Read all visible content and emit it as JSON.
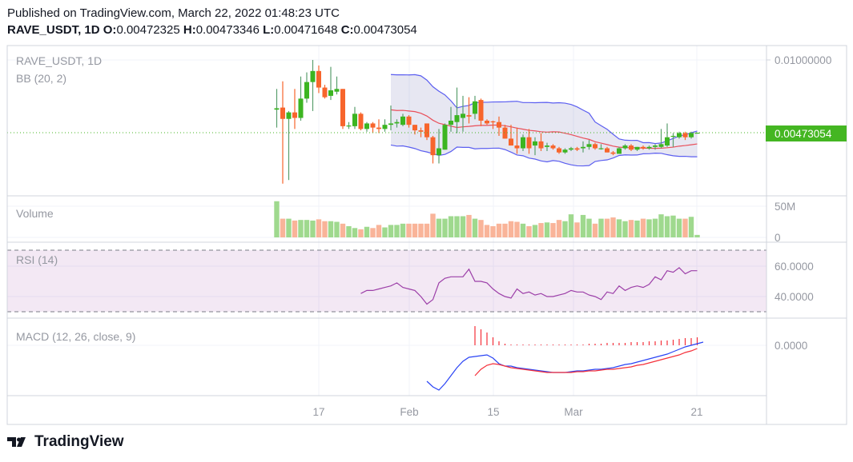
{
  "header": {
    "published": "Published on TradingView.com, March 22, 2022 01:48:23 UTC",
    "symbol_interval": "RAVE_USDT, 1D",
    "o_label": "O:",
    "o_value": "0.00472325",
    "h_label": "H:",
    "h_value": "0.00473346",
    "l_label": "L:",
    "l_value": "0.00471648",
    "c_label": "C:",
    "c_value": "0.00473054"
  },
  "legend": {
    "symbol": "RAVE_USDT, 1D",
    "bb": "BB (20, 2)",
    "volume": "Volume",
    "rsi": "RSI (14)",
    "macd": "MACD (12, 26, close, 9)"
  },
  "price_axis": {
    "labels": [
      "0.01000000"
    ],
    "last_price": "0.00473054"
  },
  "volume_axis": {
    "labels": [
      "50M",
      "0"
    ]
  },
  "rsi_axis": {
    "labels": [
      "60.0000",
      "40.0000"
    ]
  },
  "macd_axis": {
    "labels": [
      "0.0000"
    ]
  },
  "time_axis": {
    "labels": [
      "17",
      "Feb",
      "15",
      "Mar",
      "21"
    ]
  },
  "footer": {
    "brand": "TradingView"
  },
  "colors": {
    "up": "#3cb521",
    "down": "#f7652c",
    "bb_band": "#5b5ef0",
    "bb_basis": "#e94f5a",
    "rsi": "#9c3fa8",
    "macd": "#2a44f5",
    "signal": "#f5303a",
    "last_price_bg": "#44b622"
  },
  "chart_data": {
    "type": "candlestick",
    "start_date": "2022-01-10",
    "ohlc": [
      [
        0.0064,
        0.0079,
        0.0051,
        0.0065
      ],
      [
        0.00655,
        0.00845,
        0.00104,
        0.00573
      ],
      [
        0.00573,
        0.0063,
        0.0013,
        0.0062
      ],
      [
        0.0062,
        0.0079,
        0.005,
        0.0058
      ],
      [
        0.0058,
        0.0088,
        0.0056,
        0.0072
      ],
      [
        0.0072,
        0.0091,
        0.0069,
        0.0084
      ],
      [
        0.0084,
        0.01,
        0.0063,
        0.0092
      ],
      [
        0.0092,
        0.0096,
        0.0076,
        0.008
      ],
      [
        0.008,
        0.0082,
        0.0072,
        0.0073
      ],
      [
        0.0074,
        0.0095,
        0.0071,
        0.0078
      ],
      [
        0.0077,
        0.0088,
        0.0075,
        0.0079
      ],
      [
        0.0079,
        0.0079,
        0.005,
        0.0052
      ],
      [
        0.0052,
        0.0055,
        0.005,
        0.00525
      ],
      [
        0.0052,
        0.0066,
        0.005,
        0.0061
      ],
      [
        0.0061,
        0.0062,
        0.0049,
        0.005
      ],
      [
        0.005,
        0.0055,
        0.0048,
        0.0054
      ],
      [
        0.0054,
        0.0055,
        0.0047,
        0.0051
      ],
      [
        0.0051,
        0.0057,
        0.0047,
        0.005
      ],
      [
        0.005,
        0.0057,
        0.0048,
        0.0053
      ],
      [
        0.0053,
        0.0067,
        0.0049,
        0.0054
      ],
      [
        0.0054,
        0.0057,
        0.0051,
        0.0055
      ],
      [
        0.0053,
        0.0061,
        0.0052,
        0.0059
      ],
      [
        0.0059,
        0.006,
        0.0051,
        0.0053
      ],
      [
        0.0053,
        0.0053,
        0.0046,
        0.0049
      ],
      [
        0.0049,
        0.0051,
        0.0044,
        0.0048
      ],
      [
        0.0054,
        0.0054,
        0.0042,
        0.0044
      ],
      [
        0.0044,
        0.0045,
        0.0025,
        0.0031
      ],
      [
        0.0031,
        0.005,
        0.0025,
        0.0036
      ],
      [
        0.0035,
        0.0054,
        0.0035,
        0.0053
      ],
      [
        0.0053,
        0.0066,
        0.0048,
        0.0056
      ],
      [
        0.0055,
        0.008,
        0.0047,
        0.006
      ],
      [
        0.0058,
        0.0074,
        0.0048,
        0.0061
      ],
      [
        0.006,
        0.0073,
        0.0054,
        0.0059
      ],
      [
        0.0061,
        0.0074,
        0.0057,
        0.007
      ],
      [
        0.0071,
        0.0072,
        0.0052,
        0.0056
      ],
      [
        0.0056,
        0.0057,
        0.0053,
        0.0054
      ],
      [
        0.00555,
        0.0056,
        0.005,
        0.0055
      ],
      [
        0.0055,
        0.0059,
        0.0045,
        0.0051
      ],
      [
        0.0051,
        0.0053,
        0.0043,
        0.0043
      ],
      [
        0.0043,
        0.0053,
        0.0038,
        0.0038
      ],
      [
        0.0038,
        0.0051,
        0.0032,
        0.0036
      ],
      [
        0.0036,
        0.0046,
        0.0034,
        0.0044
      ],
      [
        0.0044,
        0.005,
        0.0032,
        0.0036
      ],
      [
        0.0038,
        0.0044,
        0.0031,
        0.0041
      ],
      [
        0.0041,
        0.0047,
        0.0034,
        0.0036
      ],
      [
        0.0037,
        0.004,
        0.0034,
        0.0038
      ],
      [
        0.0038,
        0.0039,
        0.0035,
        0.0036
      ],
      [
        0.0036,
        0.0037,
        0.0032,
        0.0033
      ],
      [
        0.0033,
        0.0036,
        0.0032,
        0.0035
      ],
      [
        0.0035,
        0.0037,
        0.0034,
        0.0036
      ],
      [
        0.0036,
        0.0037,
        0.0034,
        0.0035
      ],
      [
        0.0036,
        0.0041,
        0.0033,
        0.0037
      ],
      [
        0.0037,
        0.0042,
        0.0035,
        0.0039
      ],
      [
        0.0039,
        0.004,
        0.0035,
        0.0036
      ],
      [
        0.00355,
        0.0039,
        0.0035,
        0.0036
      ],
      [
        0.0036,
        0.0037,
        0.0033,
        0.0033
      ],
      [
        0.0033,
        0.0034,
        0.0031,
        0.0032
      ],
      [
        0.0032,
        0.0037,
        0.0032,
        0.0036
      ],
      [
        0.0036,
        0.0039,
        0.0035,
        0.0038
      ],
      [
        0.0038,
        0.0039,
        0.0034,
        0.0035
      ],
      [
        0.0035,
        0.0037,
        0.0034,
        0.0037
      ],
      [
        0.0037,
        0.0038,
        0.0035,
        0.0036
      ],
      [
        0.0036,
        0.0038,
        0.0035,
        0.0037
      ],
      [
        0.0037,
        0.0039,
        0.0035,
        0.0038
      ],
      [
        0.0037,
        0.005,
        0.0036,
        0.0039
      ],
      [
        0.0038,
        0.0054,
        0.0037,
        0.0044
      ],
      [
        0.0045,
        0.0047,
        0.0037,
        0.0045
      ],
      [
        0.0044,
        0.0048,
        0.0043,
        0.0047
      ],
      [
        0.0047,
        0.0048,
        0.0042,
        0.0044
      ],
      [
        0.0044,
        0.0048,
        0.0043,
        0.0047
      ],
      [
        0.00472325,
        0.00473346,
        0.00471648,
        0.00473054
      ]
    ],
    "volume_millions": [
      58,
      30,
      30,
      27,
      28,
      28,
      27,
      29,
      26,
      26,
      25,
      22,
      18,
      15,
      13,
      17,
      15,
      20,
      16,
      20,
      20,
      22,
      22,
      22,
      22,
      22,
      38,
      30,
      30,
      34,
      34,
      34,
      36,
      30,
      28,
      20,
      18,
      22,
      22,
      26,
      25,
      22,
      18,
      20,
      23,
      24,
      23,
      28,
      26,
      37,
      24,
      36,
      30,
      22,
      30,
      30,
      32,
      29,
      26,
      28,
      27,
      30,
      29,
      30,
      37,
      34,
      35,
      30,
      30,
      33,
      4
    ],
    "rsi": {
      "start_date": "2022-01-24",
      "upper_band": 70,
      "lower_band": 30,
      "values": [
        42,
        44,
        44,
        45,
        46,
        47,
        49,
        46,
        45,
        44,
        40,
        35,
        38,
        49,
        52,
        53,
        53,
        53,
        58,
        50,
        50,
        49,
        45,
        42,
        40,
        39,
        45,
        42,
        43,
        41,
        42,
        40,
        40,
        41,
        42,
        44,
        43,
        43,
        41,
        40,
        38,
        43,
        42,
        47,
        44,
        46,
        47,
        46,
        48,
        53,
        51,
        57,
        56,
        59,
        55,
        57,
        57
      ]
    },
    "macd": {
      "macd_start_date": "2022-02-04",
      "macd": [
        -0.00045,
        -0.00052,
        -0.00056,
        -0.00048,
        -0.00038,
        -0.00028,
        -0.0002,
        -0.00015,
        -0.00014,
        -0.00013,
        -0.00012,
        -0.00016,
        -0.00023,
        -0.00026,
        -0.00026,
        -0.00028,
        -0.00029,
        -0.0003,
        -0.00031,
        -0.00032,
        -0.00033,
        -0.00034,
        -0.00034,
        -0.00034,
        -0.00033,
        -0.00032,
        -0.00032,
        -0.00031,
        -0.0003,
        -0.0003,
        -0.00029,
        -0.00028,
        -0.00026,
        -0.00024,
        -0.00023,
        -0.00021,
        -0.00019,
        -0.00017,
        -0.00015,
        -0.00013,
        -0.00011,
        -8e-05,
        -5e-05,
        -2e-05,
        0.0,
        2e-05,
        4e-05
      ],
      "signal_start_date": "2022-02-12",
      "signal": [
        -0.00038,
        -0.0003,
        -0.00025,
        -0.00023,
        -0.00024,
        -0.00026,
        -0.00028,
        -0.00029,
        -0.0003,
        -0.00031,
        -0.00032,
        -0.00033,
        -0.00034,
        -0.00034,
        -0.00034,
        -0.00034,
        -0.00034,
        -0.00033,
        -0.00033,
        -0.00032,
        -0.00032,
        -0.00031,
        -0.0003,
        -0.0003,
        -0.00029,
        -0.00028,
        -0.00027,
        -0.00025,
        -0.00024,
        -0.00022,
        -0.0002,
        -0.00018,
        -0.00016,
        -0.00014,
        -0.00012,
        -9e-05,
        -7e-05,
        -4e-05
      ],
      "histogram": [
        0.00024,
        0.0002,
        0.00016,
        0.0001,
        5e-05,
        2e-05,
        1e-05,
        1e-05,
        1e-05,
        1e-05,
        1e-05,
        1e-05,
        1e-05,
        1e-05,
        1e-05,
        1e-05,
        1e-05,
        1e-05,
        1e-05,
        2e-05,
        2e-05,
        2e-05,
        3e-05,
        3e-05,
        3e-05,
        3e-05,
        4e-05,
        4e-05,
        4e-05,
        5e-05,
        5e-05,
        6e-05,
        6e-05,
        7e-05,
        8e-05,
        9e-05,
        9e-05,
        0.0001
      ]
    }
  }
}
